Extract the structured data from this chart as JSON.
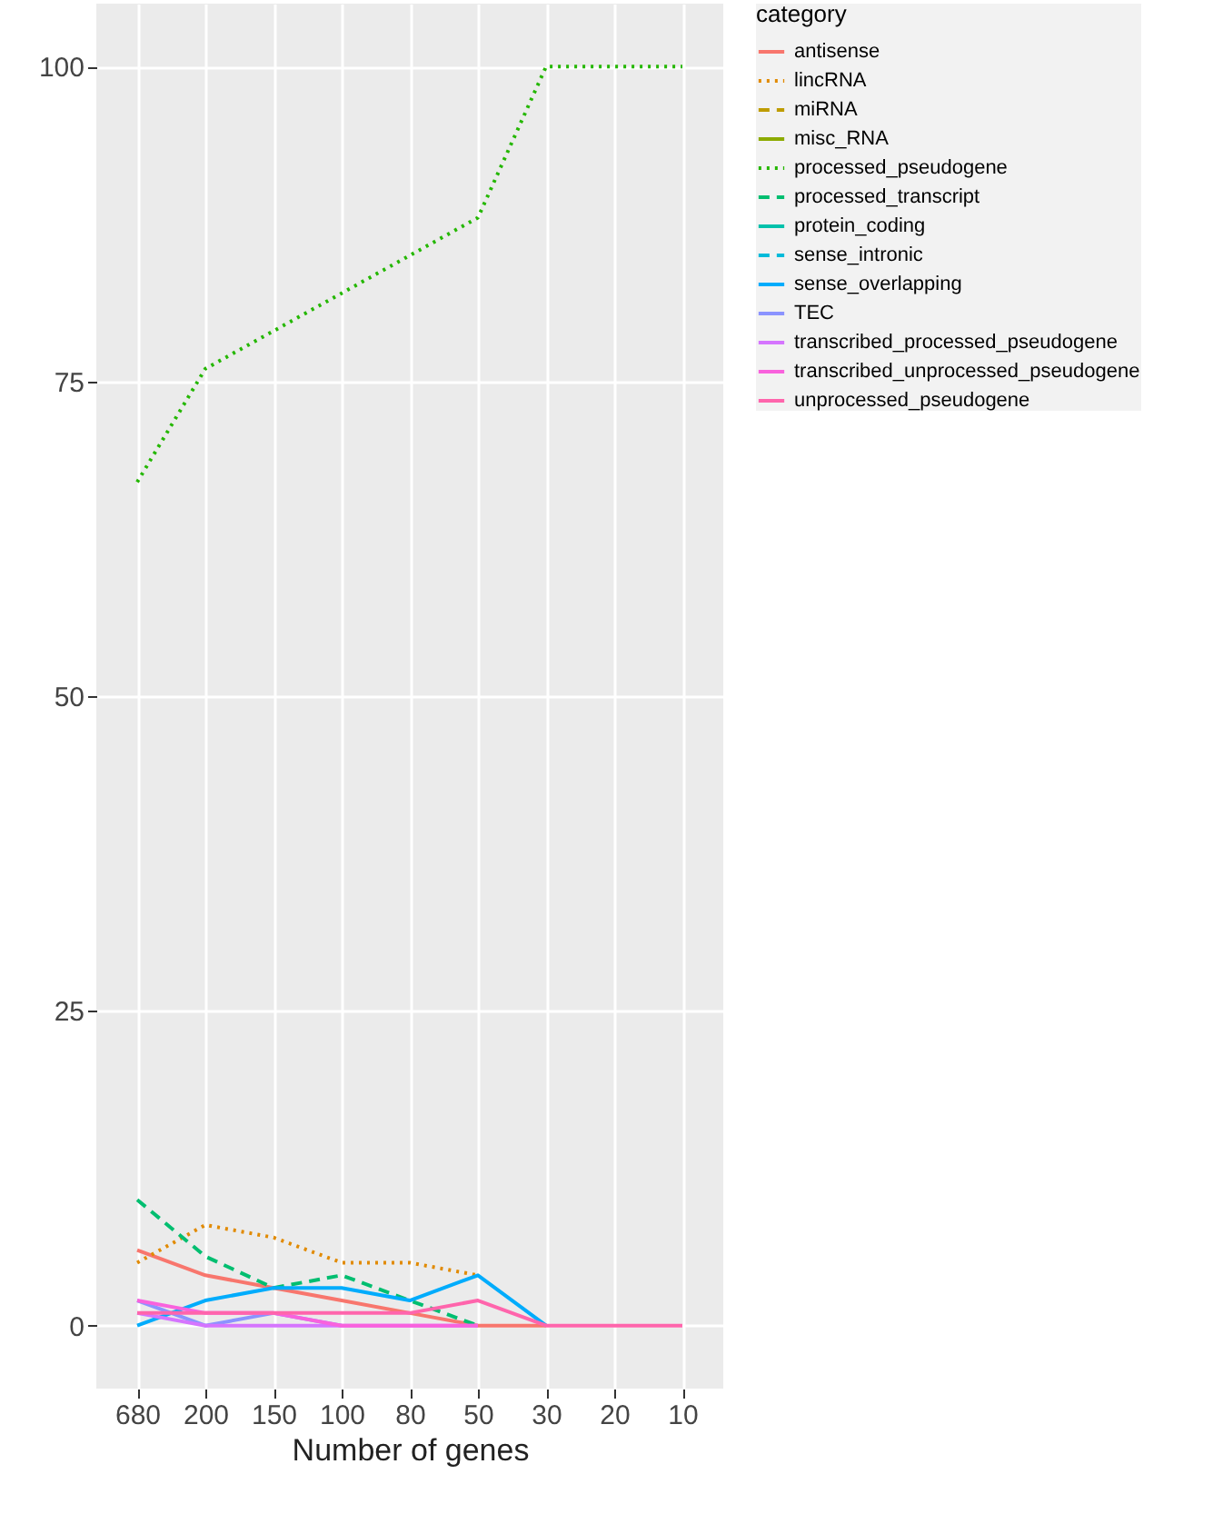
{
  "chart_data": {
    "type": "line",
    "xlabel": "Number of genes",
    "legend_title": "category",
    "categories": [
      "680",
      "200",
      "150",
      "100",
      "80",
      "50",
      "30",
      "20",
      "10"
    ],
    "ylim": [
      -5,
      105
    ],
    "yticks": [
      0,
      25,
      50,
      75,
      100
    ],
    "grid": true,
    "legend": "right",
    "series": [
      {
        "name": "antisense",
        "color": "#f8766d",
        "line_style": "solid",
        "values": [
          6,
          4,
          3,
          2,
          1,
          0,
          0,
          null,
          null
        ]
      },
      {
        "name": "lincRNA",
        "color": "#e18a00",
        "line_style": "dotted",
        "values": [
          5,
          8,
          7,
          5,
          5,
          4,
          null,
          null,
          null
        ]
      },
      {
        "name": "miRNA",
        "color": "#be9c00",
        "line_style": "dashed",
        "values": [
          null,
          null,
          null,
          null,
          null,
          null,
          null,
          null,
          null
        ]
      },
      {
        "name": "misc_RNA",
        "color": "#8cab00",
        "line_style": "solid",
        "values": [
          null,
          null,
          null,
          null,
          null,
          null,
          null,
          null,
          null
        ]
      },
      {
        "name": "processed_pseudogene",
        "color": "#24b700",
        "line_style": "dotted",
        "values": [
          67,
          76,
          79,
          82,
          85,
          88,
          100,
          100,
          100
        ]
      },
      {
        "name": "processed_transcript",
        "color": "#00be70",
        "line_style": "dashed",
        "values": [
          10,
          5.5,
          3,
          4,
          2,
          0,
          null,
          null,
          null
        ]
      },
      {
        "name": "protein_coding",
        "color": "#00c1ab",
        "line_style": "solid",
        "values": [
          null,
          null,
          null,
          null,
          null,
          null,
          null,
          null,
          null
        ]
      },
      {
        "name": "sense_intronic",
        "color": "#00bbda",
        "line_style": "dashed",
        "values": [
          null,
          null,
          null,
          null,
          null,
          null,
          null,
          null,
          null
        ]
      },
      {
        "name": "sense_overlapping",
        "color": "#00acfc",
        "line_style": "solid",
        "values": [
          0,
          2,
          3,
          3,
          2,
          4,
          0,
          null,
          null
        ]
      },
      {
        "name": "TEC",
        "color": "#8b93ff",
        "line_style": "solid",
        "values": [
          2,
          0,
          1,
          0,
          null,
          null,
          null,
          null,
          null
        ]
      },
      {
        "name": "transcribed_processed_pseudogene",
        "color": "#d575fe",
        "line_style": "solid",
        "values": [
          1,
          0,
          0,
          0,
          0,
          0,
          null,
          null,
          null
        ]
      },
      {
        "name": "transcribed_unprocessed_pseudogene",
        "color": "#f962dd",
        "line_style": "solid",
        "values": [
          2,
          1,
          1,
          0,
          0,
          0,
          null,
          null,
          null
        ]
      },
      {
        "name": "unprocessed_pseudogene",
        "color": "#ff65ac",
        "line_style": "solid",
        "values": [
          1,
          1,
          1,
          1,
          1,
          2,
          0,
          0,
          0
        ]
      }
    ]
  }
}
